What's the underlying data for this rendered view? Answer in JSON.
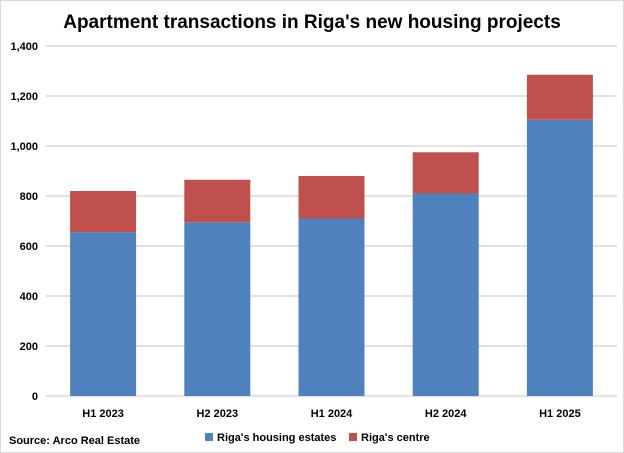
{
  "chart_data": {
    "type": "bar",
    "stacked": true,
    "title": "Apartment transactions in Riga's new housing projects",
    "categories": [
      "H1 2023",
      "H2 2023",
      "H1 2024",
      "H2 2024",
      "H1 2025"
    ],
    "series": [
      {
        "name": "Riga's housing estates",
        "color": "#4f81bd",
        "values": [
          655,
          695,
          710,
          810,
          1105
        ]
      },
      {
        "name": "Riga's centre",
        "color": "#c0504d",
        "values": [
          165,
          170,
          170,
          165,
          180
        ]
      }
    ],
    "ylim": [
      0,
      1400
    ],
    "yticks": [
      0,
      200,
      400,
      600,
      800,
      1000,
      1200,
      1400
    ],
    "ytick_labels": [
      "0",
      "200",
      "400",
      "600",
      "800",
      "1,000",
      "1,200",
      "1,400"
    ],
    "grid": true,
    "legend": "bottom",
    "source": "Source: Arco Real Estate"
  }
}
